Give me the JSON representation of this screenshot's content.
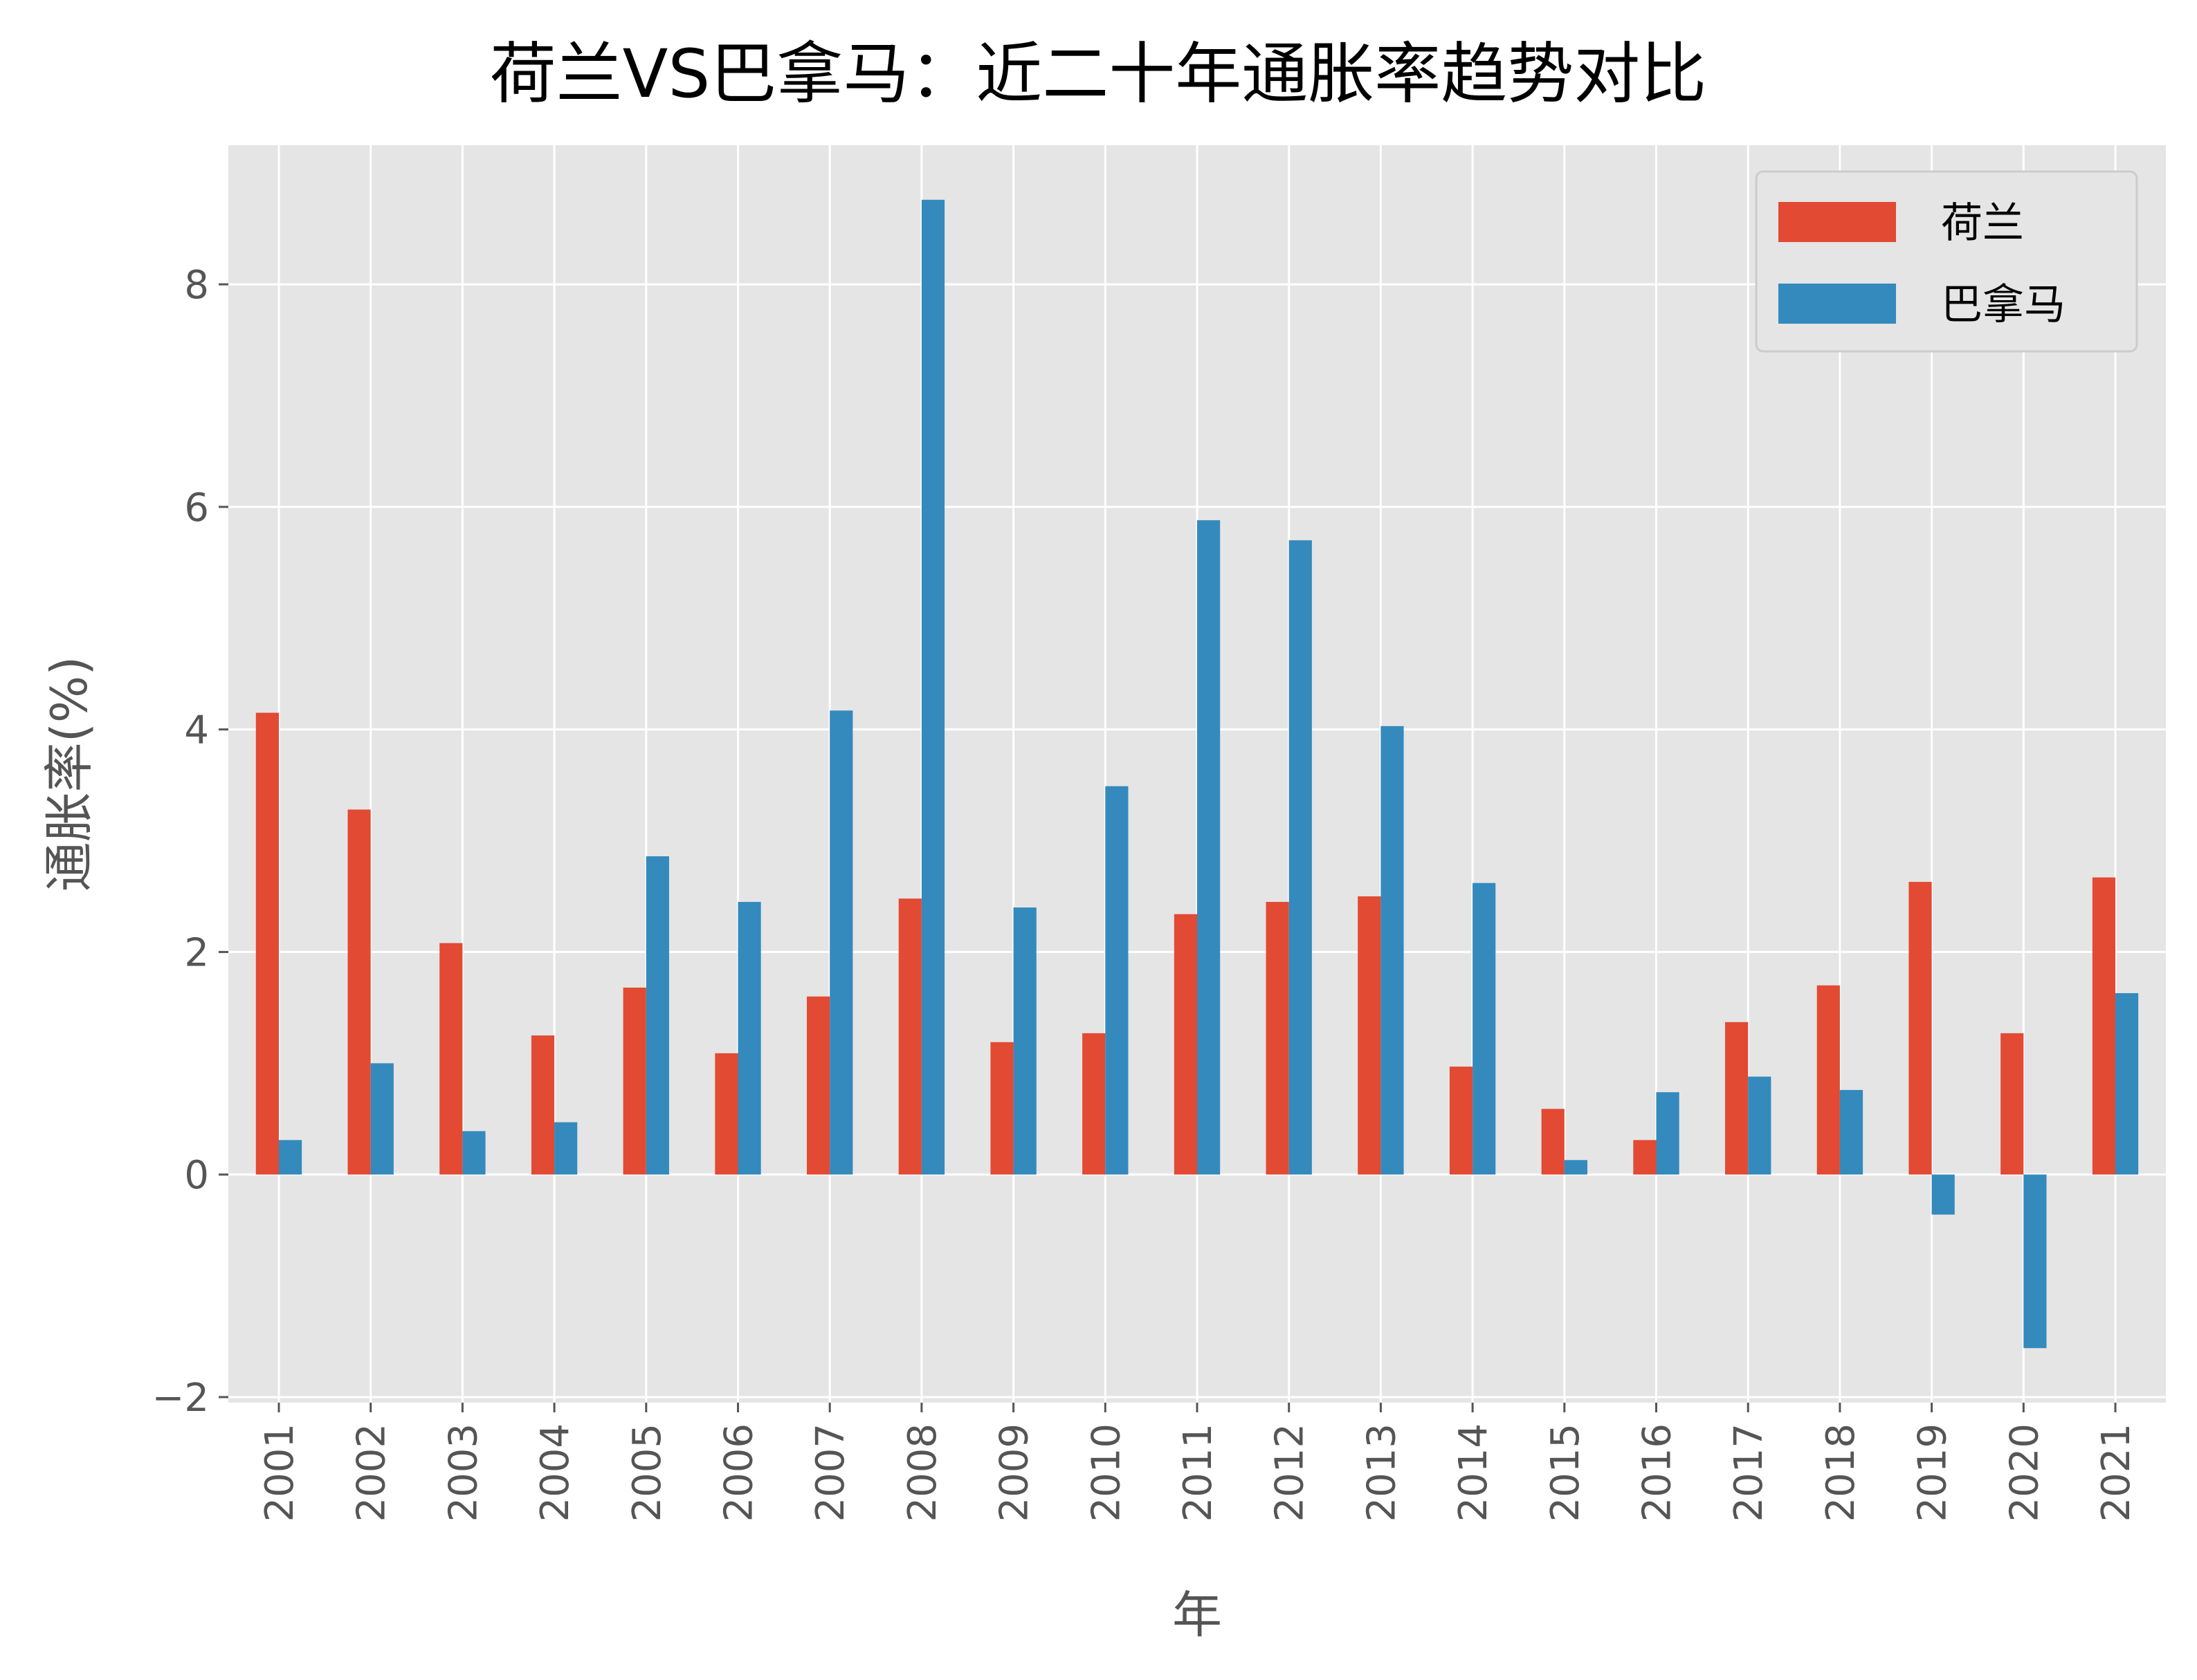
{
  "colors": {
    "series_netherlands": "#E24A33",
    "series_panama": "#348ABD",
    "plot_bg": "#E5E5E5",
    "grid": "#FFFFFF",
    "tick_text": "#555555"
  },
  "chart_data": {
    "type": "bar",
    "title": "荷兰VS巴拿马：近二十年通胀率趋势对比",
    "xlabel": "年",
    "ylabel": "通胀率(%)",
    "ylim": [
      -2.05,
      9.25
    ],
    "yticks": [
      -2,
      0,
      2,
      4,
      6,
      8
    ],
    "ytick_labels": [
      "−2",
      "0",
      "2",
      "4",
      "6",
      "8"
    ],
    "grid": true,
    "legend_position": "top-right",
    "categories": [
      "2001",
      "2002",
      "2003",
      "2004",
      "2005",
      "2006",
      "2007",
      "2008",
      "2009",
      "2010",
      "2011",
      "2012",
      "2013",
      "2014",
      "2015",
      "2016",
      "2017",
      "2018",
      "2019",
      "2020",
      "2021"
    ],
    "series": [
      {
        "name": "荷兰",
        "values": [
          4.15,
          3.28,
          2.08,
          1.25,
          1.68,
          1.09,
          1.6,
          2.48,
          1.19,
          1.27,
          2.34,
          2.45,
          2.5,
          0.97,
          0.59,
          0.31,
          1.37,
          1.7,
          2.63,
          1.27,
          2.67
        ]
      },
      {
        "name": "巴拿马",
        "values": [
          0.31,
          1.0,
          0.39,
          0.47,
          2.86,
          2.45,
          4.17,
          8.76,
          2.4,
          3.49,
          5.88,
          5.7,
          4.03,
          2.62,
          0.13,
          0.74,
          0.88,
          0.76,
          -0.36,
          -1.56,
          1.63
        ]
      }
    ]
  }
}
